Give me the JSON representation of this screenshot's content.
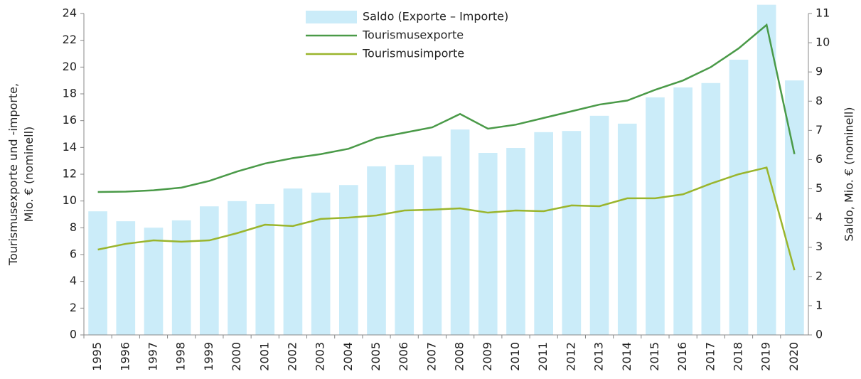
{
  "chart_data": {
    "type": "bar_line",
    "y_label": "Tourismusexporte und -importe,\nMio. € (nominell)",
    "y2_label": "Saldo, Mio. € (nominell)",
    "categories": [
      "1995",
      "1996",
      "1997",
      "1998",
      "1999",
      "2000",
      "2001",
      "2002",
      "2003",
      "2004",
      "2005",
      "2006",
      "2007",
      "2008",
      "2009",
      "2010",
      "2011",
      "2012",
      "2013",
      "2014",
      "2015",
      "2016",
      "2017",
      "2018",
      "2019",
      "2020"
    ],
    "series": [
      {
        "name": "Saldo (Exporte – Importe)",
        "type": "bar",
        "axis": "y2",
        "color": "#cbecf9",
        "values": [
          4.23,
          3.89,
          3.67,
          3.92,
          4.4,
          4.58,
          4.48,
          5.01,
          4.87,
          5.13,
          5.77,
          5.82,
          6.11,
          7.03,
          6.23,
          6.4,
          6.94,
          6.98,
          7.5,
          7.23,
          8.13,
          8.47,
          8.62,
          9.42,
          11.3,
          8.71
        ]
      },
      {
        "name": "Tourismusexporte",
        "type": "line",
        "color": "#4a9a48",
        "values": [
          10.67,
          10.7,
          10.8,
          11.0,
          11.5,
          12.2,
          12.8,
          13.2,
          13.5,
          13.9,
          14.7,
          15.1,
          15.5,
          16.5,
          15.4,
          15.7,
          16.2,
          16.7,
          17.2,
          17.5,
          18.3,
          19.0,
          20.0,
          21.4,
          23.15,
          13.5
        ]
      },
      {
        "name": "Tourismusimporte",
        "type": "line",
        "color": "#9ab52c",
        "values": [
          6.37,
          6.8,
          7.06,
          6.96,
          7.06,
          7.6,
          8.23,
          8.13,
          8.66,
          8.76,
          8.92,
          9.29,
          9.35,
          9.45,
          9.13,
          9.29,
          9.24,
          9.67,
          9.61,
          10.2,
          10.2,
          10.5,
          11.3,
          12.0,
          12.5,
          4.83
        ]
      }
    ],
    "ylim": [
      0,
      24
    ],
    "yticks": [
      0,
      2,
      4,
      6,
      8,
      10,
      12,
      14,
      16,
      18,
      20,
      22,
      24
    ],
    "y2lim": [
      0,
      11
    ],
    "y2ticks": [
      0,
      1,
      2,
      3,
      4,
      5,
      6,
      7,
      8,
      9,
      10,
      11
    ],
    "legend": "top"
  }
}
